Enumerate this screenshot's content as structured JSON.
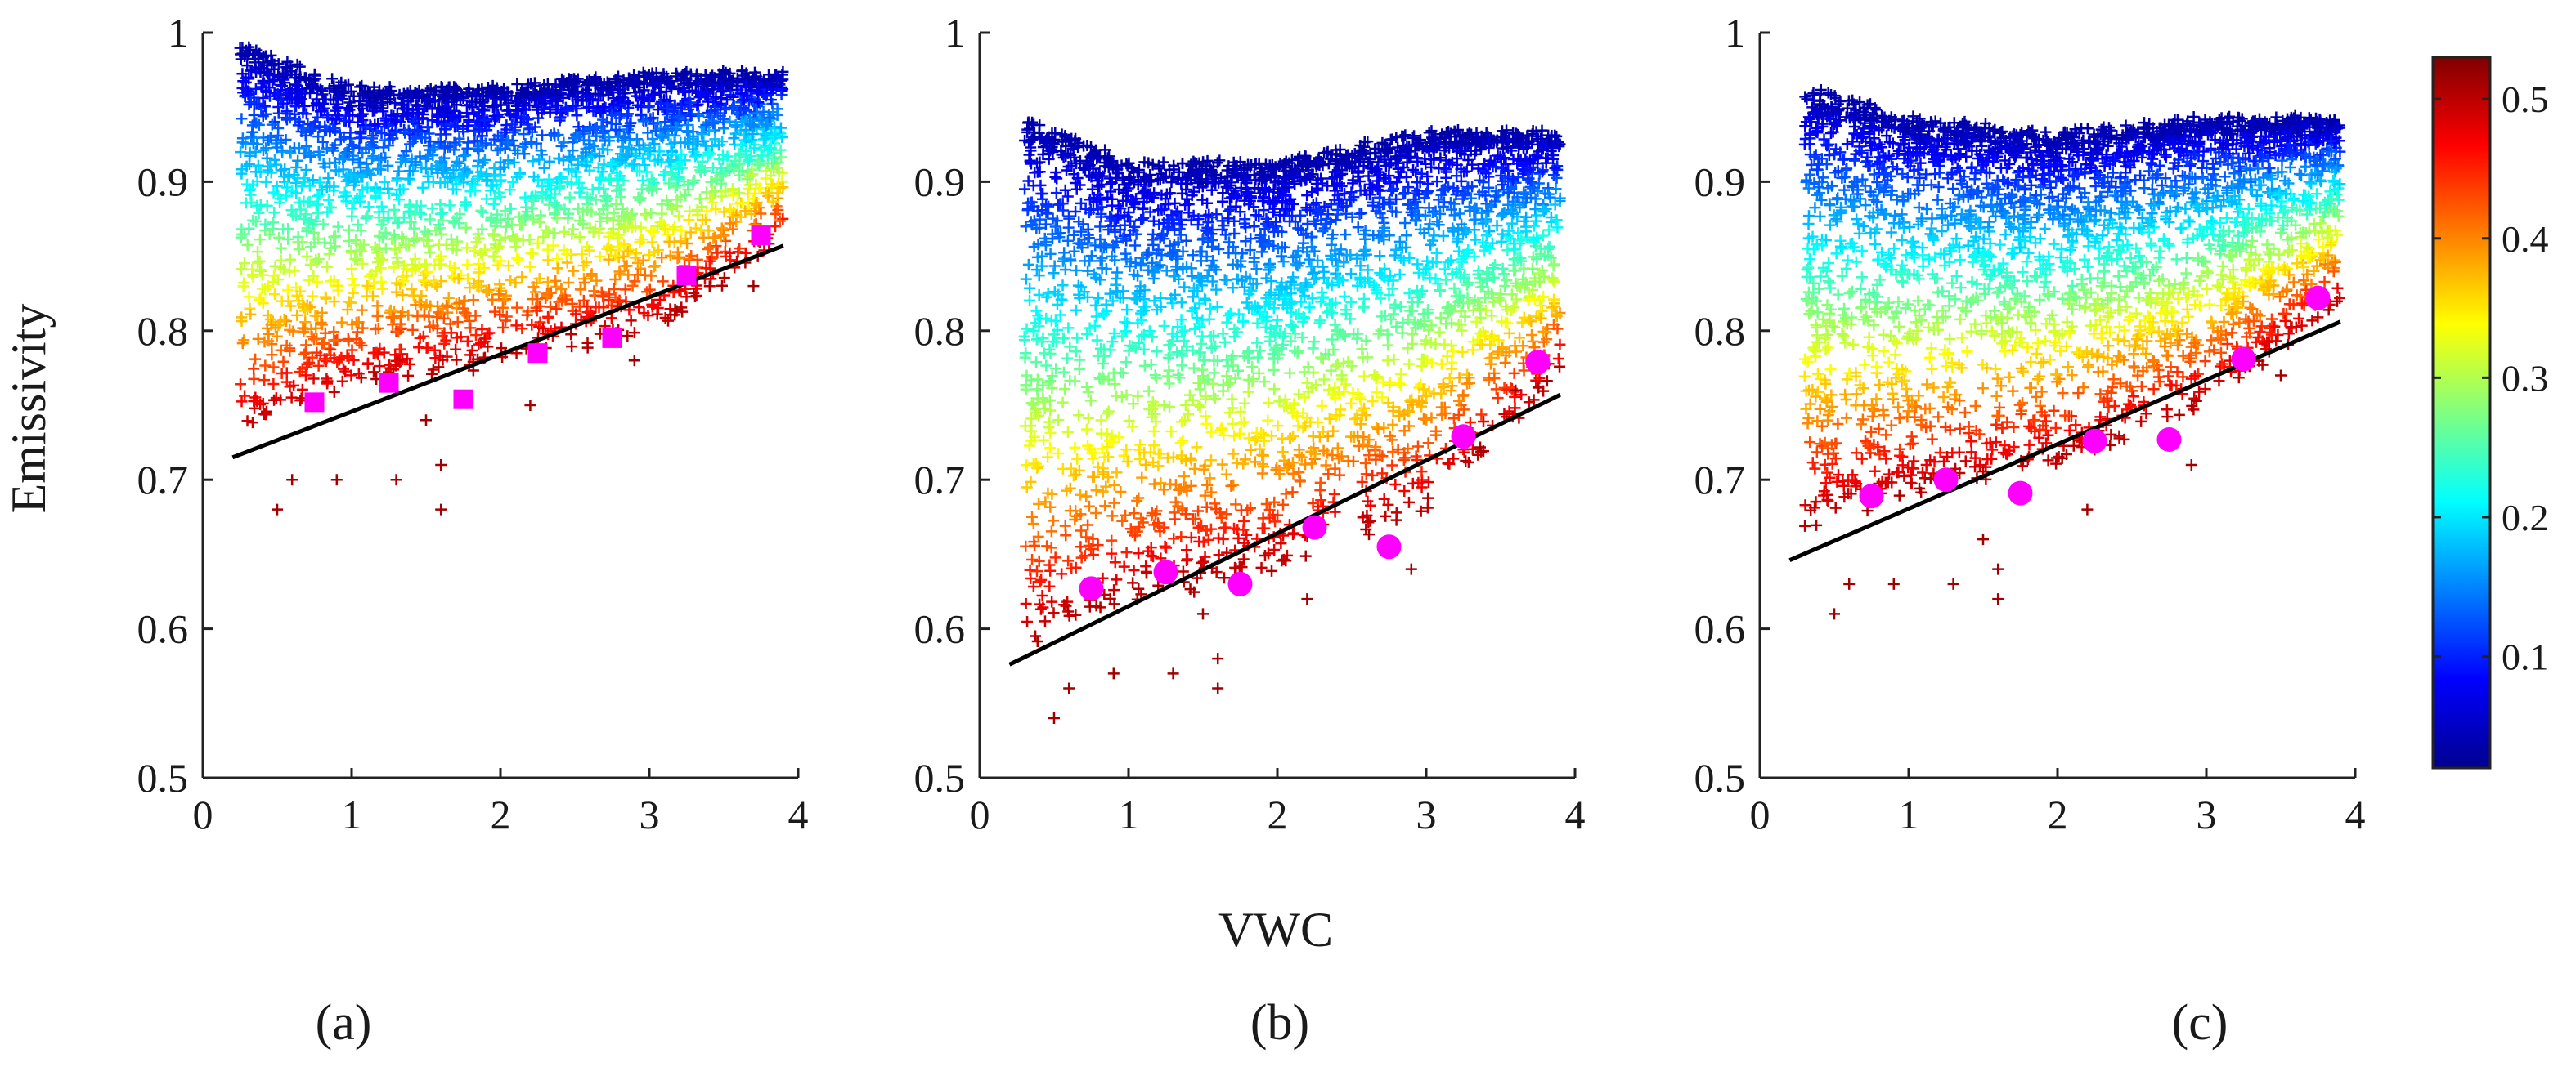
{
  "chart_data": {
    "type": "scatter",
    "ylabel": "Emissivity",
    "xlabel": "VWC",
    "xlim": [
      0,
      4
    ],
    "ylim": [
      0.5,
      1
    ],
    "xticks": [
      "0",
      "1",
      "2",
      "3",
      "4"
    ],
    "yticks": [
      "0.5",
      "0.6",
      "0.7",
      "0.8",
      "0.9",
      "1"
    ],
    "colorbar": {
      "ticks": [
        "0.1",
        "0.2",
        "0.3",
        "0.4",
        "0.5"
      ],
      "range": [
        0.02,
        0.53
      ],
      "colormap": "jet"
    },
    "panels": [
      {
        "label": "(a)",
        "fit_line": [
          [
            0.2,
            0.715
          ],
          [
            3.9,
            0.857
          ]
        ],
        "markers": {
          "shape": "square",
          "color": "#ff00ff",
          "x": [
            0.75,
            1.25,
            1.75,
            2.25,
            2.75,
            3.25,
            3.75
          ],
          "y": [
            0.752,
            0.765,
            0.754,
            0.785,
            0.795,
            0.837,
            0.864
          ]
        },
        "cloud": {
          "upper": [
            [
              0.25,
              0.99
            ],
            [
              1.0,
              0.96
            ],
            [
              2.0,
              0.96
            ],
            [
              3.0,
              0.97
            ],
            [
              3.9,
              0.97
            ]
          ],
          "lower": [
            [
              0.25,
              0.73
            ],
            [
              1.0,
              0.76
            ],
            [
              2.0,
              0.78
            ],
            [
              3.0,
              0.8
            ],
            [
              3.9,
              0.86
            ]
          ],
          "outliers": [
            [
              0.5,
              0.68
            ],
            [
              0.6,
              0.7
            ],
            [
              0.9,
              0.7
            ],
            [
              1.3,
              0.7
            ],
            [
              1.6,
              0.68
            ],
            [
              1.6,
              0.71
            ],
            [
              1.5,
              0.74
            ],
            [
              2.2,
              0.75
            ],
            [
              2.9,
              0.78
            ],
            [
              3.7,
              0.83
            ]
          ]
        }
      },
      {
        "label": "(b)",
        "fit_line": [
          [
            0.2,
            0.576
          ],
          [
            3.9,
            0.757
          ]
        ],
        "markers": {
          "shape": "circle",
          "color": "#ff00ff",
          "x": [
            0.75,
            1.25,
            1.75,
            2.25,
            2.75,
            3.25,
            3.75
          ],
          "y": [
            0.627,
            0.638,
            0.63,
            0.668,
            0.655,
            0.729,
            0.779
          ]
        },
        "cloud": {
          "upper": [
            [
              0.3,
              0.94
            ],
            [
              1.0,
              0.91
            ],
            [
              2.0,
              0.91
            ],
            [
              3.0,
              0.93
            ],
            [
              3.9,
              0.93
            ]
          ],
          "lower": [
            [
              0.3,
              0.59
            ],
            [
              1.0,
              0.62
            ],
            [
              2.0,
              0.64
            ],
            [
              3.0,
              0.68
            ],
            [
              3.9,
              0.77
            ]
          ],
          "outliers": [
            [
              0.5,
              0.54
            ],
            [
              0.6,
              0.56
            ],
            [
              0.9,
              0.57
            ],
            [
              1.3,
              0.57
            ],
            [
              1.6,
              0.56
            ],
            [
              1.6,
              0.58
            ],
            [
              1.5,
              0.61
            ],
            [
              2.2,
              0.62
            ],
            [
              2.9,
              0.64
            ],
            [
              3.6,
              0.76
            ]
          ]
        }
      },
      {
        "label": "(c)",
        "fit_line": [
          [
            0.2,
            0.646
          ],
          [
            3.9,
            0.806
          ]
        ],
        "markers": {
          "shape": "circle",
          "color": "#ff00ff",
          "x": [
            0.75,
            1.25,
            1.75,
            2.25,
            2.75,
            3.25,
            3.75
          ],
          "y": [
            0.689,
            0.7,
            0.691,
            0.726,
            0.727,
            0.781,
            0.822
          ]
        },
        "cloud": {
          "upper": [
            [
              0.3,
              0.96
            ],
            [
              1.0,
              0.94
            ],
            [
              2.0,
              0.93
            ],
            [
              3.0,
              0.94
            ],
            [
              3.9,
              0.94
            ]
          ],
          "lower": [
            [
              0.3,
              0.67
            ],
            [
              1.0,
              0.69
            ],
            [
              2.0,
              0.71
            ],
            [
              3.0,
              0.75
            ],
            [
              3.9,
              0.82
            ]
          ],
          "outliers": [
            [
              0.5,
              0.61
            ],
            [
              0.6,
              0.63
            ],
            [
              0.9,
              0.63
            ],
            [
              1.3,
              0.63
            ],
            [
              1.6,
              0.62
            ],
            [
              1.6,
              0.64
            ],
            [
              1.5,
              0.66
            ],
            [
              2.2,
              0.68
            ],
            [
              2.9,
              0.71
            ],
            [
              3.5,
              0.77
            ]
          ]
        }
      }
    ]
  }
}
